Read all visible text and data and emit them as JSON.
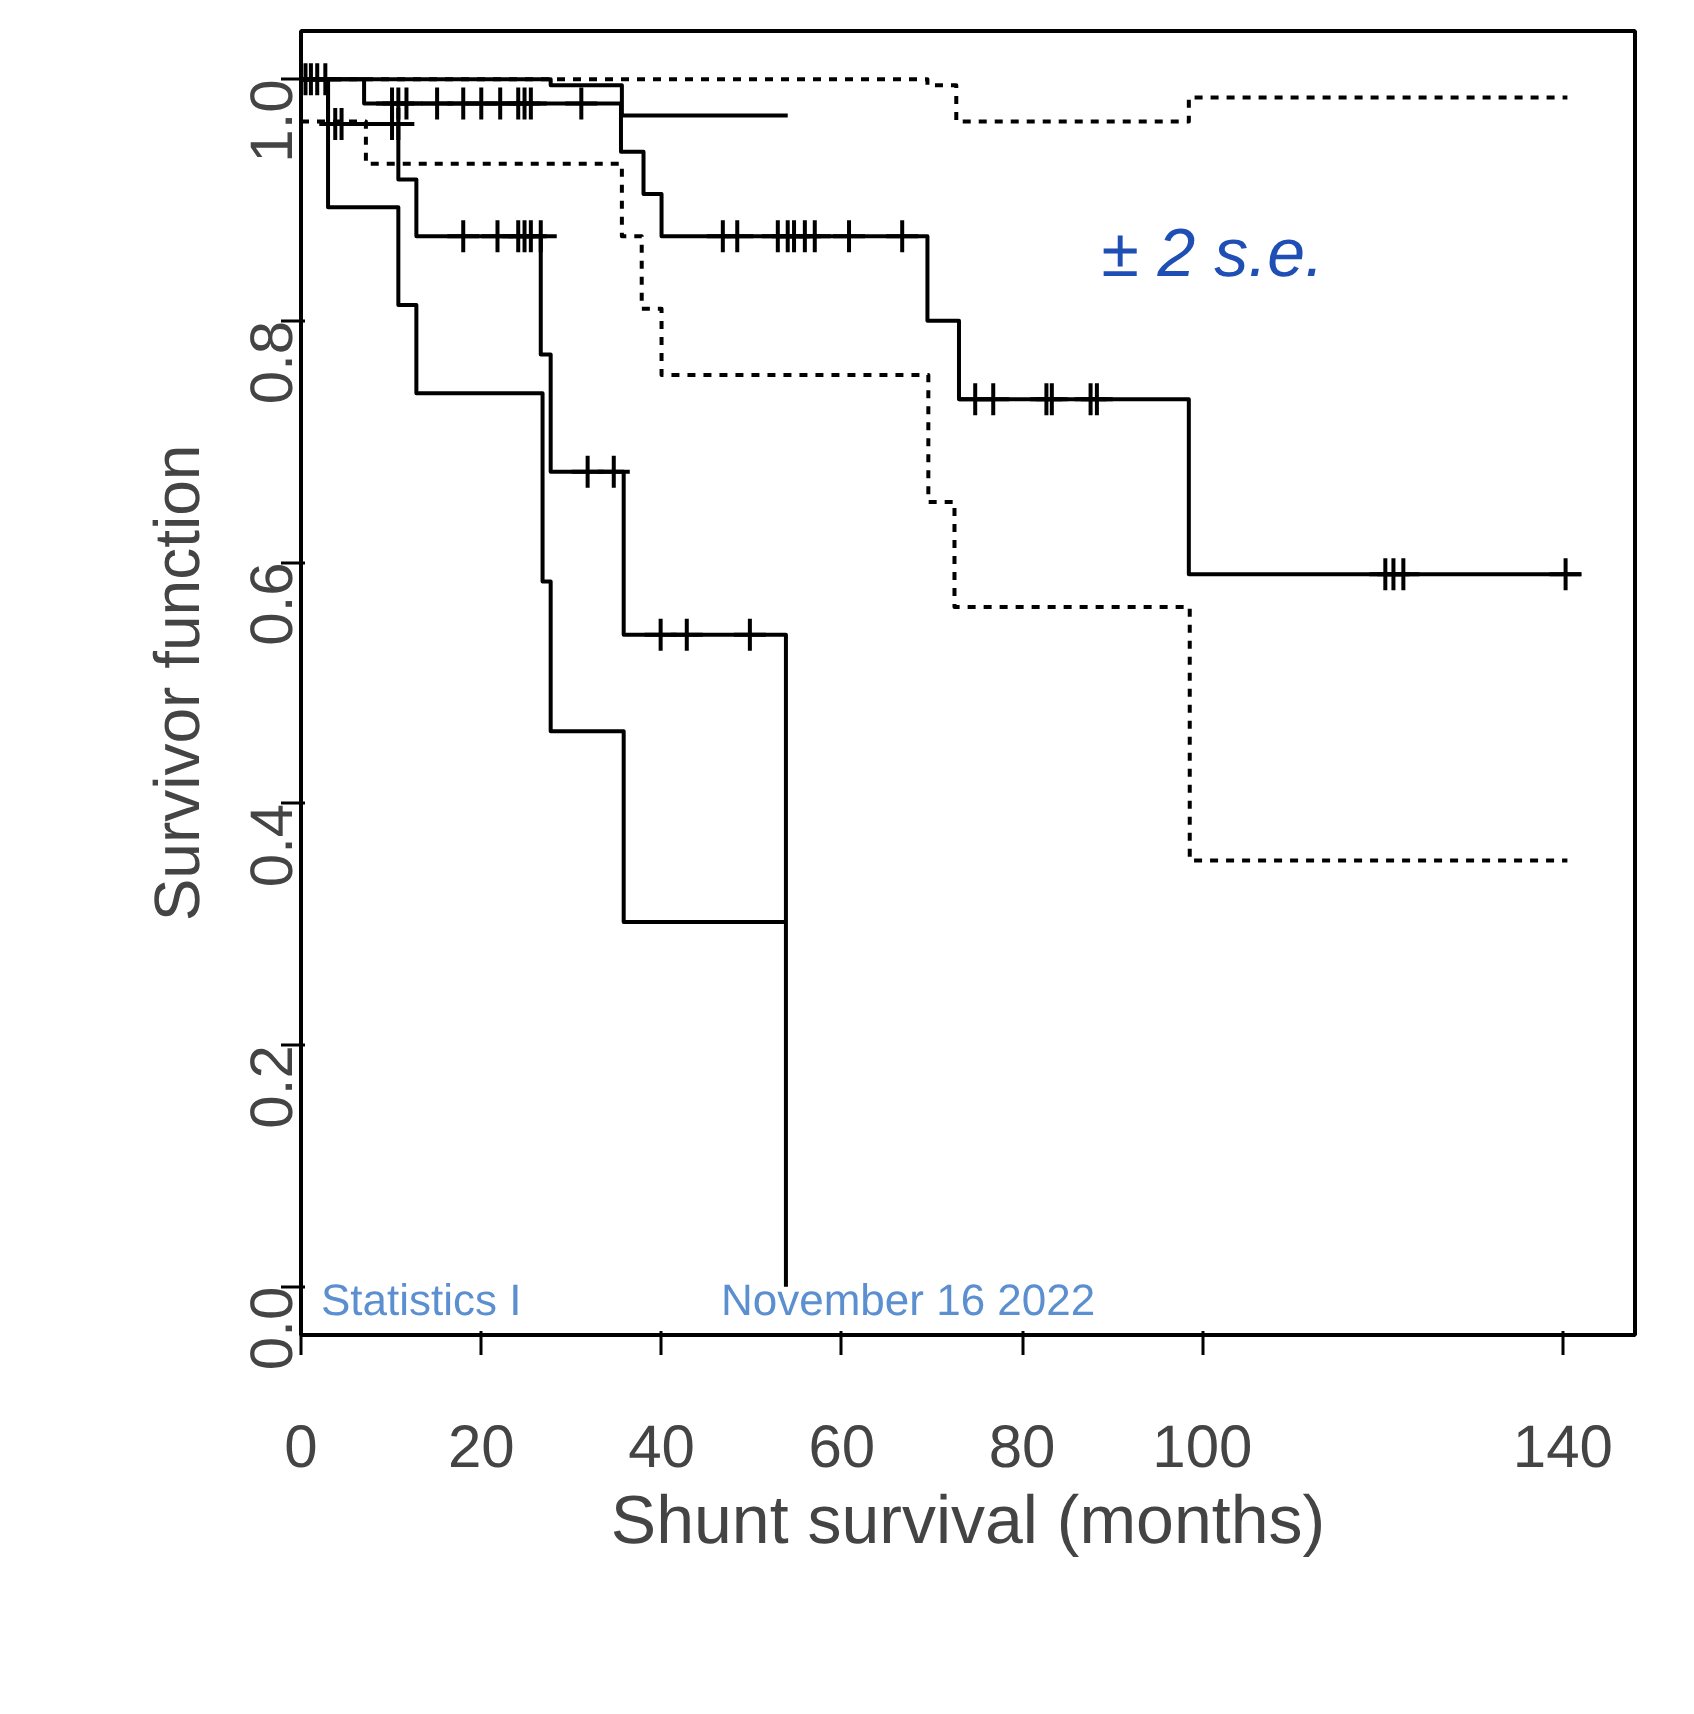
{
  "chart_data": {
    "type": "step",
    "xlabel": "Shunt survival (months)",
    "ylabel": "Survivor function",
    "xlim": [
      0,
      148
    ],
    "ylim": [
      -0.04,
      1.04
    ],
    "xticks": [
      0,
      20,
      40,
      60,
      80,
      100,
      140
    ],
    "yticks": [
      {
        "value": 0,
        "label": "0.0"
      },
      0.2,
      0.4,
      0.6,
      0.8,
      {
        "value": 1,
        "label": "1.0"
      }
    ],
    "grid": false,
    "annotations": [
      "± 2 s.e.",
      "Statistics I",
      "November 16 2022"
    ],
    "series": [
      {
        "color": "#000000",
        "line_style": "solid",
        "x": [
          0,
          7,
          35.5,
          38,
          40,
          69.5,
          73,
          98.5,
          142
        ],
        "values": [
          1.0,
          0.98,
          0.94,
          0.905,
          0.87,
          0.8,
          0.735,
          0.59,
          0.59
        ]
      },
      {
        "color": "#000000",
        "line_style": "dashed",
        "x": [
          0,
          69.5,
          72.7,
          98.5,
          140.5
        ],
        "values": [
          1.0,
          0.995,
          0.965,
          0.985,
          0.985
        ]
      },
      {
        "color": "#000000",
        "line_style": "dashed",
        "x": [
          0,
          7.2,
          35.6,
          37.8,
          40,
          69.6,
          72.5,
          98.6,
          140.5
        ],
        "values": [
          0.965,
          0.93,
          0.87,
          0.81,
          0.755,
          0.65,
          0.563,
          0.353,
          0.353
        ]
      },
      {
        "color": "#000000",
        "line_style": "solid",
        "x": [
          0,
          27.7,
          35.6,
          54
        ],
        "values": [
          1.0,
          0.995,
          0.97,
          0.97
        ]
      },
      {
        "color": "#000000",
        "line_style": "solid",
        "x": [
          0,
          3,
          10.8,
          12.8,
          26.6,
          27.7,
          35.8,
          53.8,
          53.8
        ],
        "values": [
          1.0,
          0.963,
          0.917,
          0.87,
          0.772,
          0.675,
          0.54,
          0.54,
          0.0
        ]
      },
      {
        "color": "#000000",
        "line_style": "solid",
        "x": [
          0,
          3,
          10.8,
          12.8,
          26.8,
          27.7,
          35.8,
          53.8
        ],
        "values": [
          1.0,
          0.894,
          0.813,
          0.74,
          0.584,
          0.46,
          0.302,
          0.302
        ]
      },
      {
        "type": "scatter",
        "marker": "cross",
        "color": "#000000",
        "x": [
          10.1,
          10.8,
          11.7,
          15.1,
          18,
          20,
          22.1,
          24.1,
          24.8,
          25.5,
          31.1,
          46.8,
          48.4,
          52.9,
          54,
          54.7,
          55.9,
          57,
          60.8,
          66.7,
          74.8,
          76.8,
          82.7,
          83.3,
          87.6,
          88.3,
          120.3,
          121.2,
          122.3,
          140.3
        ],
        "values": [
          0.98,
          0.98,
          0.98,
          0.98,
          0.98,
          0.98,
          0.98,
          0.98,
          0.98,
          0.98,
          0.98,
          0.87,
          0.87,
          0.87,
          0.87,
          0.87,
          0.87,
          0.87,
          0.87,
          0.87,
          0.735,
          0.735,
          0.735,
          0.735,
          0.735,
          0.735,
          0.59,
          0.59,
          0.59,
          0.59
        ]
      },
      {
        "type": "scatter",
        "marker": "cross",
        "color": "#000000",
        "x": [
          0.5,
          1.1,
          1.8,
          2.7,
          3.8,
          4.5,
          10.1,
          10.8,
          18,
          21.8,
          24.1,
          24.8,
          25.5,
          26.6,
          31.8,
          34.7,
          39.9,
          42.8,
          49.8
        ],
        "values": [
          1.0,
          1.0,
          1.0,
          1.0,
          0.963,
          0.963,
          0.963,
          0.963,
          0.87,
          0.87,
          0.87,
          0.87,
          0.87,
          0.87,
          0.675,
          0.675,
          0.54,
          0.54,
          0.54
        ]
      }
    ]
  }
}
